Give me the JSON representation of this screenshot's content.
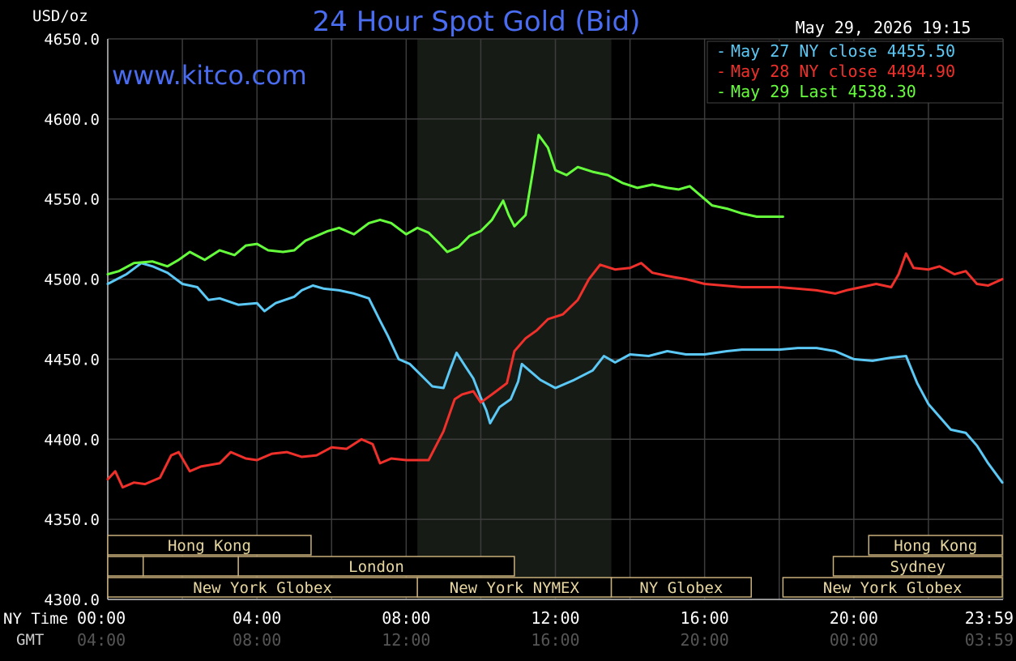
{
  "chart_data": {
    "type": "line",
    "title": "24 Hour Spot Gold (Bid)",
    "ylabel": "USD/oz",
    "watermark": "www.kitco.com",
    "timestamp": "May 29, 2026 19:15",
    "ylim": [
      4300,
      4650
    ],
    "y_ticks": [
      "4650.0",
      "4600.0",
      "4550.0",
      "4500.0",
      "4450.0",
      "4400.0",
      "4350.0",
      "4300.0"
    ],
    "x_unit": "hours (NY time)",
    "xlim": [
      0,
      24
    ],
    "x_tick_labels": {
      "row1_label": "NY Time",
      "row2_label": "GMT",
      "ny": [
        "00:00",
        "04:00",
        "08:00",
        "12:00",
        "16:00",
        "20:00",
        "23:59"
      ],
      "gmt": [
        "04:00",
        "08:00",
        "12:00",
        "16:00",
        "20:00",
        "00:00",
        "03:59"
      ]
    },
    "grid": true,
    "legend_position": "top-right",
    "legend": [
      {
        "text": "May 27 NY close 4455.50",
        "color": "#5bc8f5"
      },
      {
        "text": "May 28 NY close 4494.90",
        "color": "#f0302a"
      },
      {
        "text": "May 29 Last 4538.30",
        "color": "#66ff3c"
      }
    ],
    "shaded_region": {
      "from": 8.3,
      "to": 13.5
    },
    "series": [
      {
        "name": "May 27",
        "color": "#5bc8f5",
        "points": [
          [
            0,
            4497
          ],
          [
            0.5,
            4503
          ],
          [
            0.9,
            4510
          ],
          [
            1.2,
            4508
          ],
          [
            1.6,
            4504
          ],
          [
            2,
            4497
          ],
          [
            2.4,
            4495
          ],
          [
            2.7,
            4487
          ],
          [
            3,
            4488
          ],
          [
            3.5,
            4484
          ],
          [
            4,
            4485
          ],
          [
            4.2,
            4480
          ],
          [
            4.5,
            4485
          ],
          [
            5,
            4489
          ],
          [
            5.2,
            4493
          ],
          [
            5.5,
            4496
          ],
          [
            5.8,
            4494
          ],
          [
            6.2,
            4493
          ],
          [
            6.6,
            4491
          ],
          [
            7,
            4488
          ],
          [
            7.3,
            4474
          ],
          [
            7.5,
            4465
          ],
          [
            7.8,
            4450
          ],
          [
            8.1,
            4447
          ],
          [
            8.4,
            4440
          ],
          [
            8.7,
            4433
          ],
          [
            9,
            4432
          ],
          [
            9.2,
            4445
          ],
          [
            9.35,
            4454
          ],
          [
            9.6,
            4445
          ],
          [
            9.8,
            4438
          ],
          [
            10,
            4426
          ],
          [
            10.15,
            4418
          ],
          [
            10.25,
            4410
          ],
          [
            10.5,
            4420
          ],
          [
            10.8,
            4425
          ],
          [
            11,
            4436
          ],
          [
            11.1,
            4447
          ],
          [
            11.3,
            4443
          ],
          [
            11.6,
            4437
          ],
          [
            12,
            4432
          ],
          [
            12.5,
            4437
          ],
          [
            13,
            4443
          ],
          [
            13.3,
            4452
          ],
          [
            13.6,
            4448
          ],
          [
            14,
            4453
          ],
          [
            14.5,
            4452
          ],
          [
            15,
            4455
          ],
          [
            15.5,
            4453
          ],
          [
            16,
            4453
          ],
          [
            16.6,
            4455
          ],
          [
            17,
            4456
          ],
          [
            17.5,
            4456
          ],
          [
            18,
            4456
          ],
          [
            18.5,
            4457
          ],
          [
            19,
            4457
          ],
          [
            19.5,
            4455
          ],
          [
            20,
            4450
          ],
          [
            20.5,
            4449
          ],
          [
            21,
            4451
          ],
          [
            21.4,
            4452
          ],
          [
            21.7,
            4435
          ],
          [
            22,
            4422
          ],
          [
            22.3,
            4414
          ],
          [
            22.6,
            4406
          ],
          [
            23,
            4404
          ],
          [
            23.3,
            4396
          ],
          [
            23.6,
            4385
          ],
          [
            23.98,
            4373
          ]
        ]
      },
      {
        "name": "May 28",
        "color": "#f0302a",
        "points": [
          [
            0,
            4375
          ],
          [
            0.2,
            4380
          ],
          [
            0.4,
            4370
          ],
          [
            0.7,
            4373
          ],
          [
            1,
            4372
          ],
          [
            1.4,
            4376
          ],
          [
            1.7,
            4390
          ],
          [
            1.9,
            4392
          ],
          [
            2.2,
            4380
          ],
          [
            2.5,
            4383
          ],
          [
            3,
            4385
          ],
          [
            3.3,
            4392
          ],
          [
            3.7,
            4388
          ],
          [
            4,
            4387
          ],
          [
            4.4,
            4391
          ],
          [
            4.8,
            4392
          ],
          [
            5.2,
            4389
          ],
          [
            5.6,
            4390
          ],
          [
            6,
            4395
          ],
          [
            6.4,
            4394
          ],
          [
            6.8,
            4400
          ],
          [
            7.1,
            4397
          ],
          [
            7.3,
            4385
          ],
          [
            7.6,
            4388
          ],
          [
            8,
            4387
          ],
          [
            8.3,
            4387
          ],
          [
            8.6,
            4387
          ],
          [
            8.8,
            4396
          ],
          [
            9,
            4405
          ],
          [
            9.3,
            4425
          ],
          [
            9.5,
            4428
          ],
          [
            9.8,
            4430
          ],
          [
            10,
            4423
          ],
          [
            10.3,
            4428
          ],
          [
            10.7,
            4435
          ],
          [
            10.9,
            4455
          ],
          [
            11.2,
            4463
          ],
          [
            11.5,
            4468
          ],
          [
            11.8,
            4475
          ],
          [
            12.2,
            4478
          ],
          [
            12.6,
            4487
          ],
          [
            12.9,
            4500
          ],
          [
            13.2,
            4509
          ],
          [
            13.6,
            4506
          ],
          [
            14,
            4507
          ],
          [
            14.3,
            4510
          ],
          [
            14.6,
            4504
          ],
          [
            15,
            4502
          ],
          [
            15.5,
            4500
          ],
          [
            16,
            4497
          ],
          [
            16.5,
            4496
          ],
          [
            17,
            4495
          ],
          [
            17.5,
            4495
          ],
          [
            18,
            4495
          ],
          [
            18.5,
            4494
          ],
          [
            19,
            4493
          ],
          [
            19.5,
            4491
          ],
          [
            19.8,
            4493
          ],
          [
            20.2,
            4495
          ],
          [
            20.6,
            4497
          ],
          [
            21,
            4495
          ],
          [
            21.2,
            4503
          ],
          [
            21.4,
            4516
          ],
          [
            21.6,
            4507
          ],
          [
            22,
            4506
          ],
          [
            22.3,
            4508
          ],
          [
            22.7,
            4503
          ],
          [
            23,
            4505
          ],
          [
            23.3,
            4497
          ],
          [
            23.6,
            4496
          ],
          [
            23.98,
            4500
          ]
        ]
      },
      {
        "name": "May 29",
        "color": "#66ff3c",
        "points": [
          [
            0,
            4503
          ],
          [
            0.3,
            4505
          ],
          [
            0.7,
            4510
          ],
          [
            1.2,
            4511
          ],
          [
            1.6,
            4508
          ],
          [
            1.9,
            4512
          ],
          [
            2.2,
            4517
          ],
          [
            2.6,
            4512
          ],
          [
            3,
            4518
          ],
          [
            3.4,
            4515
          ],
          [
            3.7,
            4521
          ],
          [
            4,
            4522
          ],
          [
            4.3,
            4518
          ],
          [
            4.7,
            4517
          ],
          [
            5,
            4518
          ],
          [
            5.3,
            4524
          ],
          [
            5.6,
            4527
          ],
          [
            5.9,
            4530
          ],
          [
            6.2,
            4532
          ],
          [
            6.6,
            4528
          ],
          [
            7,
            4535
          ],
          [
            7.3,
            4537
          ],
          [
            7.6,
            4535
          ],
          [
            8,
            4528
          ],
          [
            8.3,
            4532
          ],
          [
            8.6,
            4529
          ],
          [
            8.9,
            4522
          ],
          [
            9.1,
            4517
          ],
          [
            9.4,
            4520
          ],
          [
            9.7,
            4527
          ],
          [
            10,
            4530
          ],
          [
            10.3,
            4537
          ],
          [
            10.6,
            4549
          ],
          [
            10.75,
            4540
          ],
          [
            10.9,
            4533
          ],
          [
            11.2,
            4540
          ],
          [
            11.4,
            4568
          ],
          [
            11.55,
            4590
          ],
          [
            11.8,
            4582
          ],
          [
            12,
            4568
          ],
          [
            12.3,
            4565
          ],
          [
            12.6,
            4570
          ],
          [
            13,
            4567
          ],
          [
            13.4,
            4565
          ],
          [
            13.8,
            4560
          ],
          [
            14.2,
            4557
          ],
          [
            14.6,
            4559
          ],
          [
            15,
            4557
          ],
          [
            15.3,
            4556
          ],
          [
            15.6,
            4558
          ],
          [
            15.9,
            4552
          ],
          [
            16.2,
            4546
          ],
          [
            16.6,
            4544
          ],
          [
            17,
            4541
          ],
          [
            17.4,
            4539
          ],
          [
            17.8,
            4539
          ],
          [
            18.1,
            4539
          ]
        ]
      }
    ],
    "session_bars": [
      {
        "row": 1,
        "from": 0,
        "to": 5.45,
        "label": "Hong Kong"
      },
      {
        "row": 1,
        "from": 20.4,
        "to": 23.98,
        "label": "Hong Kong"
      },
      {
        "row": 2,
        "from": 0,
        "to": 0.95,
        "label": ""
      },
      {
        "row": 2,
        "from": 0.95,
        "to": 3.5,
        "label": ""
      },
      {
        "row": 2,
        "from": 3.5,
        "to": 10.9,
        "label": "London"
      },
      {
        "row": 2,
        "from": 19.45,
        "to": 23.98,
        "label": "Sydney"
      },
      {
        "row": 3,
        "from": 0,
        "to": 8.3,
        "label": "New York Globex"
      },
      {
        "row": 3,
        "from": 8.3,
        "to": 13.5,
        "label": "New York NYMEX"
      },
      {
        "row": 3,
        "from": 13.5,
        "to": 17.25,
        "label": "NY Globex"
      },
      {
        "row": 3,
        "from": 18.1,
        "to": 23.98,
        "label": "New York Globex"
      }
    ]
  }
}
